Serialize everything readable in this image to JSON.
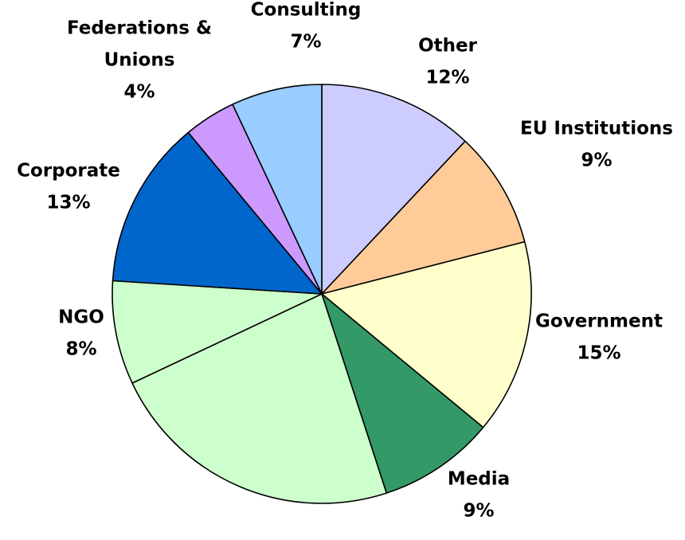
{
  "chart_data": {
    "type": "pie",
    "start_angle_deg": 0,
    "direction": "clockwise",
    "slices": [
      {
        "key": "other",
        "label_lines": [
          "Other"
        ],
        "percent_label": "12%",
        "value": 12,
        "color": "#CCCCFF"
      },
      {
        "key": "eu-institutions",
        "label_lines": [
          "EU Institutions"
        ],
        "percent_label": "9%",
        "value": 9,
        "color": "#FFCC99"
      },
      {
        "key": "government",
        "label_lines": [
          "Government"
        ],
        "percent_label": "15%",
        "value": 15,
        "color": "#FFFFCC"
      },
      {
        "key": "media",
        "label_lines": [
          "Media"
        ],
        "percent_label": "9%",
        "value": 9,
        "color": "#339966"
      },
      {
        "key": "unlabeled",
        "label_lines": [],
        "percent_label": "",
        "value": 23,
        "color": "#CCFFCC"
      },
      {
        "key": "ngo",
        "label_lines": [
          "NGO"
        ],
        "percent_label": "8%",
        "value": 8,
        "color": "#CCFFCC"
      },
      {
        "key": "corporate",
        "label_lines": [
          "Corporate"
        ],
        "percent_label": "13%",
        "value": 13,
        "color": "#0066CC"
      },
      {
        "key": "federations-unions",
        "label_lines": [
          "Federations &",
          "Unions"
        ],
        "percent_label": "4%",
        "value": 4,
        "color": "#CC99FF"
      },
      {
        "key": "consulting",
        "label_lines": [
          "Consulting"
        ],
        "percent_label": "7%",
        "value": 7,
        "color": "#99CCFF"
      }
    ]
  }
}
